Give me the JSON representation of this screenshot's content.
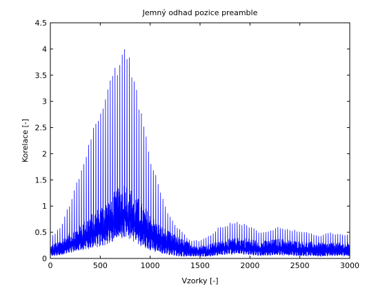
{
  "chart_data": {
    "type": "line",
    "title": "Jemný odhad pozice preamble",
    "xlabel": "Vzorky [-]",
    "ylabel": "Korelace [-]",
    "xlim": [
      0,
      3000
    ],
    "ylim": [
      0,
      4.5
    ],
    "x_ticks": [
      0,
      500,
      1000,
      1500,
      2000,
      2500,
      3000
    ],
    "x_tick_labels": [
      "0",
      "500",
      "1000",
      "1500",
      "2000",
      "2500",
      "3000"
    ],
    "y_ticks": [
      0,
      0.5,
      1,
      1.5,
      2,
      2.5,
      3,
      3.5,
      4,
      4.5
    ],
    "y_tick_labels": [
      "0",
      "0.5",
      "1",
      "1.5",
      "2",
      "2.5",
      "3",
      "3.5",
      "4",
      "4.5"
    ],
    "grid": false,
    "series_color": "#0000ff",
    "series": [
      {
        "name": "",
        "style": "oscillating correlation envelope",
        "upper_envelope": {
          "x": [
            0,
            100,
            200,
            300,
            400,
            500,
            600,
            700,
            750,
            800,
            900,
            1000,
            1100,
            1200,
            1300,
            1400,
            1500,
            1600,
            1700,
            1800,
            1900,
            2000,
            2100,
            2200,
            2300,
            2400,
            2500,
            2600,
            2700,
            2800,
            2900,
            3000
          ],
          "y": [
            0.4,
            0.6,
            1.1,
            1.7,
            2.3,
            2.9,
            3.4,
            3.9,
            4.2,
            3.8,
            2.9,
            2.0,
            1.3,
            0.8,
            0.55,
            0.35,
            0.35,
            0.45,
            0.62,
            0.68,
            0.7,
            0.62,
            0.5,
            0.55,
            0.62,
            0.55,
            0.55,
            0.48,
            0.45,
            0.5,
            0.48,
            0.45
          ]
        },
        "dense_band_upper": {
          "x": [
            0,
            100,
            200,
            300,
            400,
            500,
            600,
            700,
            750,
            800,
            900,
            1000,
            1100,
            1200,
            1300,
            1400,
            1500,
            1600,
            1700,
            1800,
            1900,
            2000,
            2100,
            2200,
            2300,
            2400,
            2500,
            2600,
            2700,
            2800,
            2900,
            3000
          ],
          "y": [
            0.25,
            0.35,
            0.5,
            0.65,
            0.85,
            1.0,
            1.2,
            1.4,
            1.5,
            1.35,
            1.1,
            0.85,
            0.65,
            0.5,
            0.4,
            0.3,
            0.25,
            0.28,
            0.33,
            0.38,
            0.4,
            0.38,
            0.33,
            0.35,
            0.38,
            0.35,
            0.33,
            0.32,
            0.3,
            0.3,
            0.3,
            0.3
          ]
        },
        "lower_envelope": {
          "x": [
            0,
            100,
            200,
            300,
            400,
            500,
            600,
            700,
            750,
            800,
            900,
            1000,
            1100,
            1200,
            1300,
            1400,
            1500,
            1600,
            1700,
            1800,
            1900,
            2000,
            2100,
            2200,
            2300,
            2400,
            2500,
            2600,
            2700,
            2800,
            2900,
            3000
          ],
          "y": [
            0.05,
            0.08,
            0.12,
            0.18,
            0.22,
            0.28,
            0.35,
            0.45,
            0.5,
            0.45,
            0.3,
            0.2,
            0.12,
            0.08,
            0.05,
            0.05,
            0.05,
            0.05,
            0.08,
            0.1,
            0.1,
            0.08,
            0.06,
            0.07,
            0.08,
            0.07,
            0.06,
            0.06,
            0.05,
            0.06,
            0.06,
            0.06
          ]
        }
      }
    ]
  }
}
